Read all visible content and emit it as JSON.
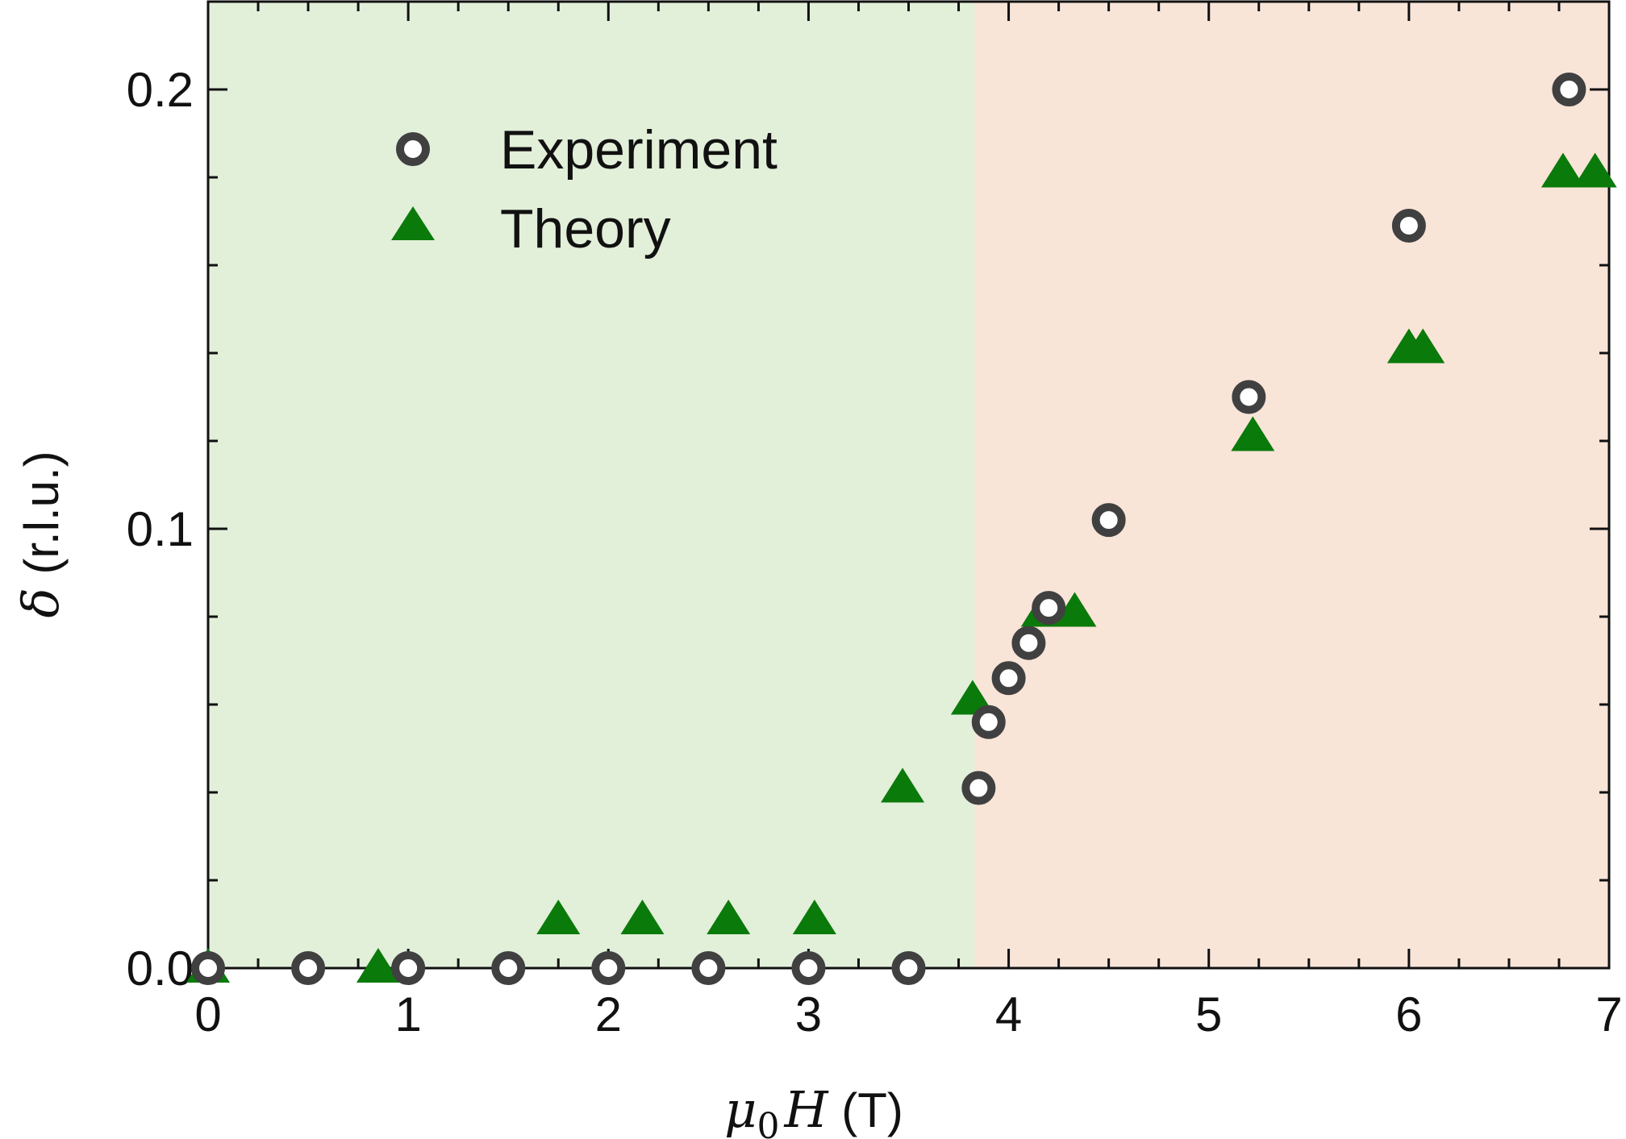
{
  "chart_data": {
    "type": "scatter",
    "xlabel": {
      "symbol": "μ",
      "sub": "0",
      "var": "H",
      "unit": " (T)"
    },
    "ylabel": {
      "symbol": "δ",
      "unit": " (r.l.u.)"
    },
    "xlim": [
      0,
      7
    ],
    "ylim": [
      0,
      0.22
    ],
    "xticks": [
      0,
      1,
      2,
      3,
      4,
      5,
      6,
      7
    ],
    "xtick_labels": [
      "0",
      "1",
      "2",
      "3",
      "4",
      "5",
      "6",
      "7"
    ],
    "yticks": [
      0.0,
      0.1,
      0.2
    ],
    "ytick_labels": [
      "0.0",
      "0.1",
      "0.2"
    ],
    "regions": [
      {
        "x_from": 0,
        "x_to": 3.83,
        "color": "#e2efd9"
      },
      {
        "x_from": 3.83,
        "x_to": 7,
        "color": "#f9e4d8"
      }
    ],
    "legend_position": "top-left",
    "series": [
      {
        "name": "Experiment",
        "marker": "open-circle",
        "color": "#404040",
        "points": [
          [
            0,
            0
          ],
          [
            0.5,
            0
          ],
          [
            1,
            0
          ],
          [
            1.5,
            0
          ],
          [
            2,
            0
          ],
          [
            2.5,
            0
          ],
          [
            3,
            0
          ],
          [
            3.5,
            0
          ],
          [
            3.85,
            0.041
          ],
          [
            3.9,
            0.056
          ],
          [
            4.0,
            0.066
          ],
          [
            4.1,
            0.074
          ],
          [
            4.2,
            0.082
          ],
          [
            4.5,
            0.102
          ],
          [
            5.2,
            0.13
          ],
          [
            6.0,
            0.169
          ],
          [
            6.8,
            0.2
          ]
        ]
      },
      {
        "name": "Theory",
        "marker": "filled-triangle",
        "color": "#0a7a0a",
        "points": [
          [
            0,
            0
          ],
          [
            0.85,
            0
          ],
          [
            1.75,
            0.011
          ],
          [
            2.17,
            0.011
          ],
          [
            2.6,
            0.011
          ],
          [
            3.03,
            0.011
          ],
          [
            3.47,
            0.041
          ],
          [
            3.82,
            0.061
          ],
          [
            4.17,
            0.081
          ],
          [
            4.33,
            0.081
          ],
          [
            5.22,
            0.121
          ],
          [
            6.0,
            0.141
          ],
          [
            6.07,
            0.141
          ],
          [
            6.77,
            0.181
          ],
          [
            6.93,
            0.181
          ]
        ]
      }
    ],
    "grid": false
  }
}
